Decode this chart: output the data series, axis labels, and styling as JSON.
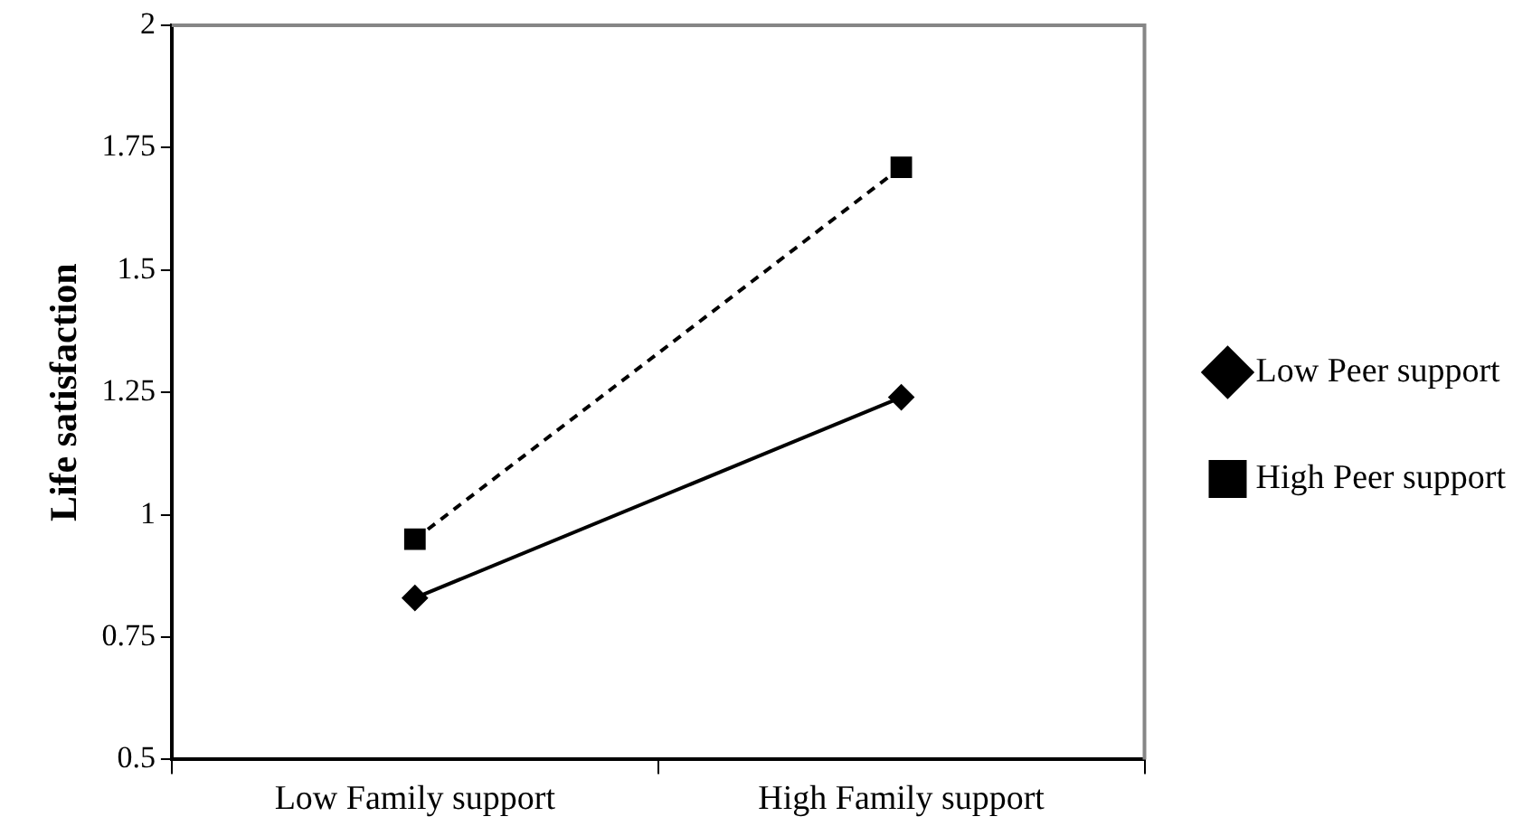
{
  "chart_data": {
    "type": "line",
    "ylabel": "Life satisfaction",
    "categories": [
      "Low Family support",
      "High Family support"
    ],
    "series": [
      {
        "name": "Low Peer support",
        "color": "#000000",
        "values": [
          0.83,
          1.24
        ],
        "marker": "diamond",
        "line_style": "solid"
      },
      {
        "name": "High Peer support",
        "color": "#000000",
        "values": [
          0.95,
          1.71
        ],
        "marker": "square",
        "line_style": "dashed"
      }
    ],
    "ylim": [
      0.5,
      2
    ],
    "yticks": [
      0.5,
      0.75,
      1,
      1.25,
      1.5,
      1.75,
      2
    ],
    "grid": false,
    "legend": "right"
  }
}
